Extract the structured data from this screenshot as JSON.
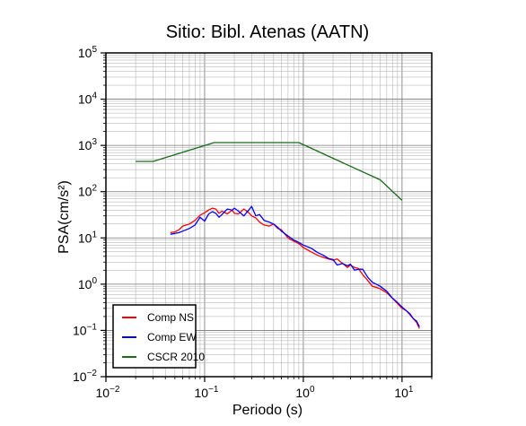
{
  "chart_data": {
    "type": "line",
    "title": "Sitio: Bibl. Atenas (AATN)",
    "xlabel": "Periodo (s)",
    "ylabel": "PSA(cm/s²)",
    "xscale": "log",
    "yscale": "log",
    "xlim": [
      0.01,
      20
    ],
    "ylim": [
      0.01,
      100000
    ],
    "grid": true,
    "legend_position": "bottom-left",
    "x_ticks": [
      {
        "base": "10",
        "exp": "−2",
        "value": 0.01
      },
      {
        "base": "10",
        "exp": "−1",
        "value": 0.1
      },
      {
        "base": "10",
        "exp": "0",
        "value": 1
      },
      {
        "base": "10",
        "exp": "1",
        "value": 10
      }
    ],
    "y_ticks": [
      {
        "base": "10",
        "exp": "−2",
        "value": 0.01
      },
      {
        "base": "10",
        "exp": "−1",
        "value": 0.1
      },
      {
        "base": "10",
        "exp": "0",
        "value": 1
      },
      {
        "base": "10",
        "exp": "1",
        "value": 10
      },
      {
        "base": "10",
        "exp": "2",
        "value": 100
      },
      {
        "base": "10",
        "exp": "3",
        "value": 1000
      },
      {
        "base": "10",
        "exp": "4",
        "value": 10000
      },
      {
        "base": "10",
        "exp": "5",
        "value": 100000
      }
    ],
    "series": [
      {
        "name": "Comp NS",
        "color": "#ff0000",
        "x": [
          0.045,
          0.05,
          0.055,
          0.06,
          0.07,
          0.08,
          0.09,
          0.1,
          0.11,
          0.12,
          0.13,
          0.14,
          0.15,
          0.17,
          0.19,
          0.2,
          0.22,
          0.25,
          0.28,
          0.3,
          0.33,
          0.36,
          0.4,
          0.45,
          0.5,
          0.55,
          0.6,
          0.7,
          0.8,
          0.9,
          1.0,
          1.2,
          1.4,
          1.6,
          1.8,
          2.0,
          2.2,
          2.5,
          2.8,
          3.0,
          3.3,
          3.6,
          4.0,
          4.5,
          5.0,
          5.5,
          6.0,
          7.0,
          8.0,
          9.0,
          10.0,
          11.0,
          12.0,
          13.0,
          14.0,
          15.0
        ],
        "y": [
          13,
          13.5,
          15,
          18,
          20,
          24,
          31,
          35,
          40,
          44,
          42,
          34,
          38,
          33,
          40,
          34,
          33,
          42,
          35,
          30,
          27,
          22,
          19,
          18,
          20,
          16,
          15,
          10,
          8.5,
          7.5,
          6.2,
          5,
          4.2,
          3.8,
          3.5,
          3.3,
          3.5,
          2.8,
          2.3,
          2.6,
          2.3,
          2.2,
          1.6,
          1.2,
          0.9,
          0.85,
          0.8,
          0.65,
          0.5,
          0.38,
          0.3,
          0.27,
          0.22,
          0.18,
          0.15,
          0.11
        ]
      },
      {
        "name": "Comp EW",
        "color": "#0000ff",
        "x": [
          0.045,
          0.05,
          0.055,
          0.06,
          0.07,
          0.08,
          0.09,
          0.1,
          0.11,
          0.12,
          0.13,
          0.14,
          0.15,
          0.17,
          0.19,
          0.2,
          0.22,
          0.25,
          0.28,
          0.3,
          0.33,
          0.36,
          0.4,
          0.45,
          0.5,
          0.55,
          0.6,
          0.7,
          0.8,
          0.9,
          1.0,
          1.2,
          1.4,
          1.6,
          1.8,
          2.0,
          2.2,
          2.5,
          2.8,
          3.0,
          3.3,
          3.6,
          4.0,
          4.5,
          5.0,
          5.5,
          6.0,
          7.0,
          8.0,
          9.0,
          10.0,
          11.0,
          12.0,
          13.0,
          14.0,
          15.0
        ],
        "y": [
          12,
          12.5,
          13,
          14,
          16,
          19,
          28,
          23,
          33,
          37,
          34,
          28,
          32,
          42,
          40,
          44,
          38,
          30,
          40,
          48,
          30,
          32,
          24,
          22,
          20,
          17,
          14,
          11,
          9,
          8,
          7,
          6,
          4.8,
          4.2,
          3.6,
          3.4,
          2.6,
          2.8,
          2.5,
          2.7,
          2.0,
          2.1,
          2.1,
          1.4,
          1.1,
          1.0,
          0.9,
          0.7,
          0.5,
          0.4,
          0.32,
          0.27,
          0.23,
          0.18,
          0.16,
          0.12
        ]
      },
      {
        "name": "CSCR 2010",
        "color": "#1a6b1a",
        "x": [
          0.02,
          0.03,
          0.125,
          0.9,
          6.0,
          10.0
        ],
        "y": [
          450,
          450,
          1150,
          1150,
          180,
          65
        ]
      }
    ]
  }
}
